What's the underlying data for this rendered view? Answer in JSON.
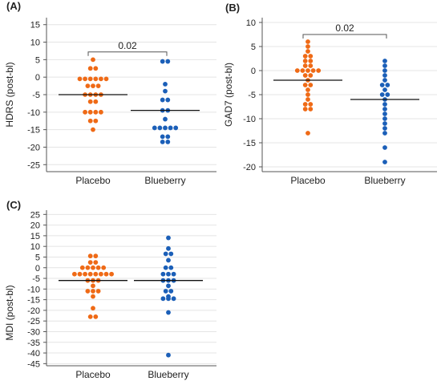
{
  "colors": {
    "placebo": "#ef6a16",
    "blueberry": "#1b5fb8",
    "grid": "#e4e4e4",
    "axis": "#555555",
    "mean": "#111111"
  },
  "chart_data": [
    {
      "type": "scatter",
      "panel_label": "(A)",
      "ylabel": "HDRS (post-bl)",
      "ylim": [
        -27,
        17
      ],
      "yticks": [
        15,
        10,
        5,
        0,
        -5,
        -10,
        -15,
        -20,
        -25
      ],
      "grid": true,
      "categories": [
        "Placebo",
        "Blueberry"
      ],
      "series": [
        {
          "name": "Placebo",
          "color": "#ef6a16",
          "mean": -5,
          "values": [
            5,
            2.5,
            2.5,
            -0.5,
            -0.5,
            -0.5,
            -0.5,
            -0.5,
            -0.5,
            -2.5,
            -2.5,
            -2.5,
            -5,
            -5,
            -5,
            -5,
            -7,
            -7,
            -10,
            -10,
            -10,
            -10,
            -12.5,
            -12.5,
            -15
          ]
        },
        {
          "name": "Blueberry",
          "color": "#1b5fb8",
          "mean": -9.5,
          "values": [
            4.5,
            4.5,
            -2,
            -4,
            -6.5,
            -6.5,
            -9.5,
            -9.5,
            -12,
            -14.5,
            -14.5,
            -14.5,
            -14.5,
            -14.5,
            -17,
            -17,
            -18.5,
            -18.5
          ]
        }
      ],
      "comparison": {
        "label": "0.02",
        "y": 7.2
      }
    },
    {
      "type": "scatter",
      "panel_label": "(B)",
      "ylabel": "GAD7 (post-bl)",
      "ylim": [
        -21,
        11
      ],
      "yticks": [
        10,
        5,
        0,
        -5,
        -10,
        -15,
        -20
      ],
      "grid": true,
      "categories": [
        "Placebo",
        "Blueberry"
      ],
      "series": [
        {
          "name": "Placebo",
          "color": "#ef6a16",
          "mean": -2,
          "values": [
            6,
            5,
            4,
            3,
            3,
            2,
            2,
            1,
            1,
            0,
            0,
            0,
            0,
            0,
            -1,
            -1,
            -2,
            -3,
            -3,
            -4,
            -5,
            -6,
            -7,
            -7,
            -8,
            -8,
            -13
          ]
        },
        {
          "name": "Blueberry",
          "color": "#1b5fb8",
          "mean": -6,
          "values": [
            2,
            1,
            0,
            -1,
            -2,
            -3,
            -3,
            -4,
            -5,
            -5,
            -6,
            -7,
            -8,
            -9,
            -10,
            -11,
            -12,
            -13,
            -16,
            -19
          ]
        }
      ],
      "comparison": {
        "label": "0.02",
        "y": 7.5
      }
    },
    {
      "type": "scatter",
      "panel_label": "(C)",
      "ylabel": "MDI (post-bl)",
      "ylim": [
        -46,
        27
      ],
      "yticks": [
        25,
        20,
        15,
        10,
        5,
        0,
        -5,
        -10,
        -15,
        -20,
        -25,
        -30,
        -35,
        -40,
        -45
      ],
      "grid": true,
      "categories": [
        "Placebo",
        "Blueberry"
      ],
      "series": [
        {
          "name": "Placebo",
          "color": "#ef6a16",
          "mean": -6,
          "values": [
            5.5,
            5.5,
            2.5,
            2.5,
            0,
            0,
            0,
            0,
            0,
            -3,
            -3,
            -3,
            -3,
            -3,
            -3,
            -3,
            -3,
            -6,
            -6,
            -6,
            -8.5,
            -11,
            -11,
            -11,
            -13.5,
            -19,
            -23,
            -23
          ]
        },
        {
          "name": "Blueberry",
          "color": "#1b5fb8",
          "mean": -6,
          "values": [
            14,
            9,
            6.5,
            6.5,
            3.5,
            0,
            0,
            -3,
            -3,
            -3,
            -6,
            -6,
            -6,
            -8.5,
            -11,
            -11,
            -13.5,
            -14.5,
            -14.5,
            -14.5,
            -21,
            -41
          ]
        }
      ],
      "comparison": null
    }
  ]
}
